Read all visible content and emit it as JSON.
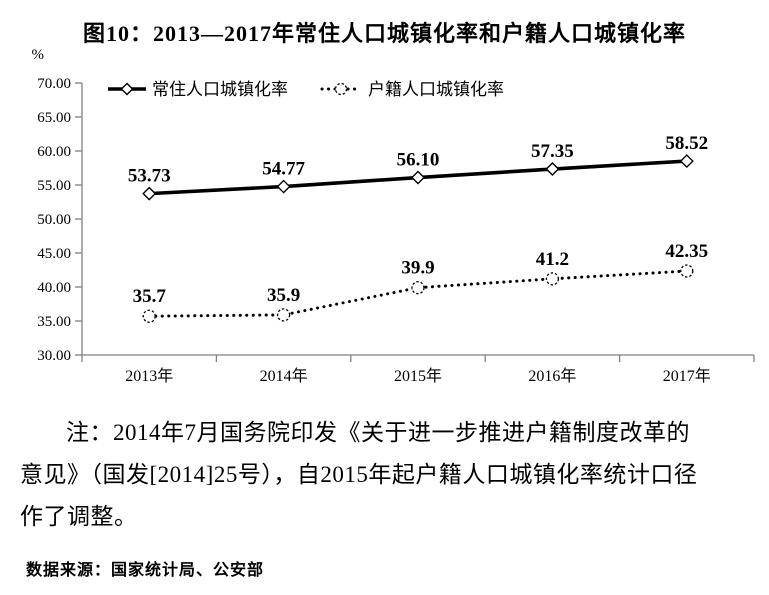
{
  "title": "图10：2013—2017年常住人口城镇化率和户籍人口城镇化率",
  "chart_data": {
    "type": "line",
    "title": "图10：2013—2017年常住人口城镇化率和户籍人口城镇化率",
    "unit_label": "%",
    "categories": [
      "2013年",
      "2014年",
      "2015年",
      "2016年",
      "2017年"
    ],
    "series": [
      {
        "name": "常住人口城镇化率",
        "values": [
          53.73,
          54.77,
          56.1,
          57.35,
          58.52
        ],
        "labels": [
          "53.73",
          "54.77",
          "56.10",
          "57.35",
          "58.52"
        ],
        "line_style": "solid",
        "marker": "diamond"
      },
      {
        "name": "户籍人口城镇化率",
        "values": [
          35.7,
          35.9,
          39.9,
          41.2,
          42.35
        ],
        "labels": [
          "35.7",
          "35.9",
          "39.9",
          "41.2",
          "42.35"
        ],
        "line_style": "dotted",
        "marker": "circle"
      }
    ],
    "ylim": [
      30,
      70
    ],
    "ytick_step": 5,
    "ytick_labels": [
      "30.00",
      "35.00",
      "40.00",
      "45.00",
      "50.00",
      "55.00",
      "60.00",
      "65.00",
      "70.00"
    ],
    "xlabel": "",
    "ylabel": "%",
    "grid": false,
    "legend_position": "top-inside"
  },
  "note": {
    "text": "注：2014年7月国务院印发《关于进一步推进户籍制度改革的意见》（国发[2014]25号），自2015年起户籍人口城镇化率统计口径作了调整。"
  },
  "source": "数据来源：国家统计局、公安部",
  "colors": {
    "series_line": "#000000",
    "axis": "#808080",
    "text": "#000000",
    "background": "#ffffff"
  }
}
